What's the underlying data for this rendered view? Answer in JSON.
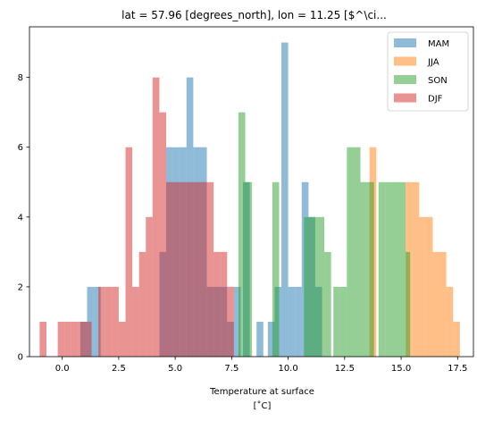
{
  "chart_data": {
    "type": "bar",
    "title": "lat = 57.96 [degrees_north], lon = 11.25 [$^\\ci...",
    "xlabel": "Temperature at surface",
    "xlabel_unit": "[$^{\\circ}$C]",
    "xlabel_unit_display": "[˚C]",
    "ylabel": "",
    "xlim": [
      -1.45,
      18.2
    ],
    "ylim": [
      0,
      9.45
    ],
    "xticks": [
      0.0,
      2.5,
      5.0,
      7.5,
      10.0,
      12.5,
      15.0,
      17.5
    ],
    "xtick_labels": [
      "0.0",
      "2.5",
      "5.0",
      "7.5",
      "10.0",
      "12.5",
      "15.0",
      "17.5"
    ],
    "yticks": [
      0,
      2,
      4,
      6,
      8
    ],
    "ytick_labels": [
      "0",
      "2",
      "4",
      "6",
      "8"
    ],
    "legend_position": "upper right",
    "grid": false,
    "series": [
      {
        "name": "MAM",
        "color": "#1f77b4",
        "alpha": 0.5,
        "bins": [
          [
            0.8,
            1.1,
            1
          ],
          [
            1.1,
            1.4,
            2
          ],
          [
            1.4,
            1.7,
            2
          ],
          [
            4.3,
            4.6,
            3
          ],
          [
            4.6,
            4.9,
            6
          ],
          [
            4.9,
            5.2,
            6
          ],
          [
            5.2,
            5.5,
            6
          ],
          [
            5.5,
            5.8,
            8
          ],
          [
            5.8,
            6.1,
            6
          ],
          [
            6.1,
            6.4,
            6
          ],
          [
            6.4,
            6.7,
            2
          ],
          [
            6.7,
            7.0,
            2
          ],
          [
            7.0,
            7.3,
            2
          ],
          [
            7.3,
            7.6,
            1
          ],
          [
            7.6,
            7.9,
            2
          ],
          [
            8.0,
            8.3,
            5
          ],
          [
            8.6,
            8.9,
            1
          ],
          [
            9.1,
            9.4,
            1
          ],
          [
            9.4,
            9.7,
            2
          ],
          [
            9.7,
            10.0,
            9
          ],
          [
            10.0,
            10.3,
            2
          ],
          [
            10.3,
            10.6,
            2
          ],
          [
            10.6,
            10.9,
            5
          ],
          [
            10.9,
            11.2,
            4
          ],
          [
            11.2,
            11.5,
            2
          ]
        ]
      },
      {
        "name": "JJA",
        "color": "#ff7f0e",
        "alpha": 0.5,
        "bins": [
          [
            13.6,
            13.9,
            6
          ],
          [
            15.2,
            15.5,
            5
          ],
          [
            15.5,
            15.8,
            5
          ],
          [
            15.8,
            16.1,
            4
          ],
          [
            16.1,
            16.4,
            4
          ],
          [
            16.4,
            16.7,
            3
          ],
          [
            16.7,
            17.0,
            3
          ],
          [
            17.0,
            17.3,
            2
          ],
          [
            17.3,
            17.6,
            1
          ]
        ]
      },
      {
        "name": "SON",
        "color": "#2ca02c",
        "alpha": 0.5,
        "bins": [
          [
            7.8,
            8.1,
            7
          ],
          [
            8.1,
            8.4,
            5
          ],
          [
            9.3,
            9.6,
            5
          ],
          [
            10.7,
            11.0,
            4
          ],
          [
            11.0,
            11.3,
            4
          ],
          [
            11.3,
            11.6,
            4
          ],
          [
            11.6,
            11.9,
            3
          ],
          [
            12.0,
            12.3,
            2
          ],
          [
            12.3,
            12.6,
            2
          ],
          [
            12.6,
            12.9,
            6
          ],
          [
            12.9,
            13.2,
            6
          ],
          [
            13.2,
            13.5,
            5
          ],
          [
            13.5,
            13.8,
            5
          ],
          [
            14.0,
            14.3,
            5
          ],
          [
            14.3,
            14.6,
            5
          ],
          [
            14.6,
            14.9,
            5
          ],
          [
            14.9,
            15.2,
            5
          ],
          [
            15.2,
            15.4,
            3
          ]
        ]
      },
      {
        "name": "DJF",
        "color": "#d62728",
        "alpha": 0.5,
        "bins": [
          [
            -1.0,
            -0.7,
            1
          ],
          [
            -0.2,
            0.1,
            1
          ],
          [
            0.1,
            0.4,
            1
          ],
          [
            0.4,
            0.7,
            1
          ],
          [
            0.7,
            1.0,
            1
          ],
          [
            1.0,
            1.3,
            1
          ],
          [
            1.6,
            1.9,
            2
          ],
          [
            1.9,
            2.2,
            2
          ],
          [
            2.2,
            2.5,
            2
          ],
          [
            2.5,
            2.8,
            1
          ],
          [
            2.8,
            3.1,
            6
          ],
          [
            3.1,
            3.4,
            2
          ],
          [
            3.4,
            3.7,
            3
          ],
          [
            3.7,
            4.0,
            4
          ],
          [
            4.0,
            4.3,
            8
          ],
          [
            4.3,
            4.6,
            7
          ],
          [
            4.6,
            4.9,
            5
          ],
          [
            4.9,
            5.2,
            5
          ],
          [
            5.2,
            5.5,
            5
          ],
          [
            5.5,
            5.8,
            5
          ],
          [
            5.8,
            6.1,
            5
          ],
          [
            6.1,
            6.4,
            5
          ],
          [
            6.4,
            6.7,
            5
          ],
          [
            6.7,
            7.0,
            3
          ],
          [
            7.0,
            7.3,
            3
          ],
          [
            7.3,
            7.6,
            2
          ]
        ]
      }
    ]
  }
}
